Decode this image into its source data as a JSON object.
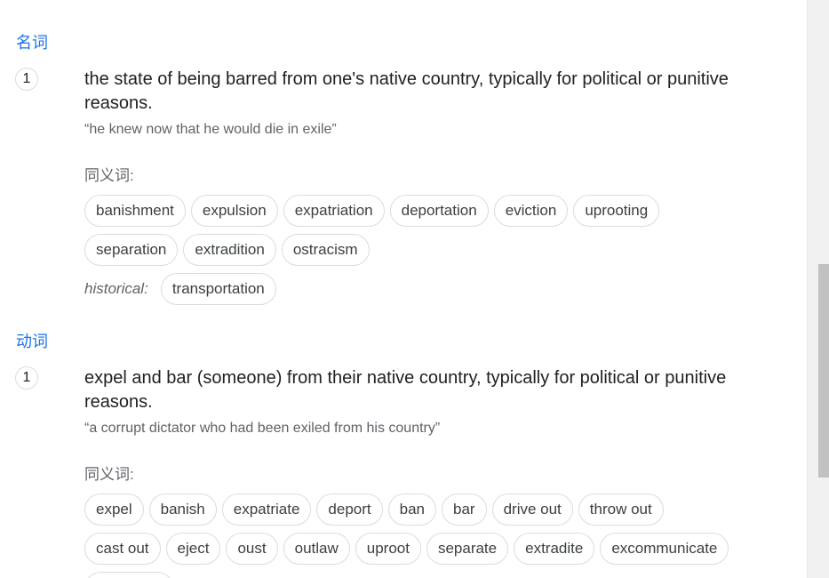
{
  "cut_top_text": "",
  "sections": [
    {
      "pos_label": "名词",
      "sense_number": "1",
      "definition": "the state of being barred from one's native country, typically for political or punitive reasons.",
      "example": "“he knew now that he would die in exile”",
      "synonyms_label": "同义词:",
      "synonym_rows": [
        [
          "banishment",
          "expulsion",
          "expatriation",
          "deportation",
          "eviction",
          "uprooting"
        ],
        [
          "separation",
          "extradition",
          "ostracism"
        ]
      ],
      "register_label": "historical:",
      "register_synonyms": [
        "transportation"
      ]
    },
    {
      "pos_label": "动词",
      "sense_number": "1",
      "definition": "expel and bar (someone) from their native country, typically for political or punitive reasons.",
      "example": "“a corrupt dictator who had been exiled from his country”",
      "synonyms_label": "同义词:",
      "synonym_rows": [
        [
          "expel",
          "banish",
          "expatriate",
          "deport",
          "ban",
          "bar",
          "drive out",
          "throw out"
        ],
        [
          "cast out",
          "eject",
          "oust",
          "outlaw",
          "uproot",
          "separate",
          "extradite",
          "excommunicate"
        ]
      ]
    }
  ]
}
